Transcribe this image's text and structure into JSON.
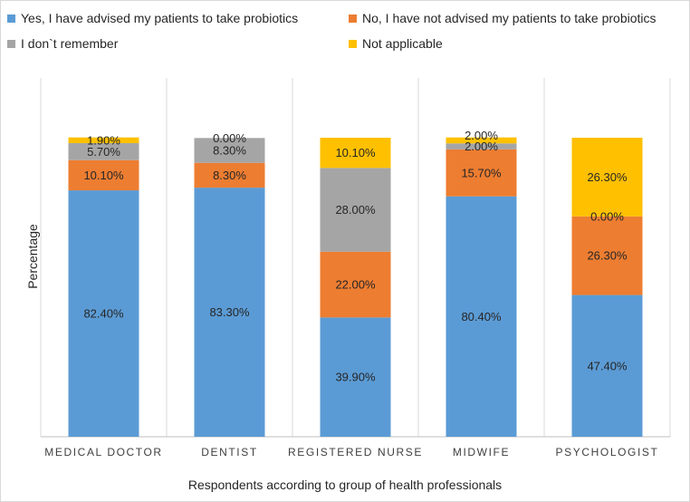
{
  "chart_data": {
    "type": "stacked-bar",
    "title": "",
    "xlabel": "Respondents according to group of health professionals",
    "ylabel": "Percentage",
    "ylim": [
      0,
      100
    ],
    "grid": false,
    "legend_position": "top",
    "categories": [
      "MEDICAL DOCTOR",
      "DENTIST",
      "REGISTERED NURSE",
      "MIDWIFE",
      "PSYCHOLOGIST"
    ],
    "series": [
      {
        "name": "Yes, I have advised my patients to take probiotics",
        "color": "#5b9bd5",
        "values": [
          82.4,
          83.3,
          39.9,
          80.4,
          47.4
        ],
        "labels": [
          "82.40%",
          "83.30%",
          "39.90%",
          "80.40%",
          "47.40%"
        ]
      },
      {
        "name": "No, I have not advised my patients to take probiotics",
        "color": "#ed7d31",
        "values": [
          10.1,
          8.3,
          22.0,
          15.7,
          26.3
        ],
        "labels": [
          "10.10%",
          "8.30%",
          "22.00%",
          "15.70%",
          "26.30%"
        ]
      },
      {
        "name": "I don`t remember",
        "color": "#a5a5a5",
        "values": [
          5.7,
          8.3,
          28.0,
          2.0,
          0.0
        ],
        "labels": [
          "5.70%",
          "8.30%",
          "28.00%",
          "2.00%",
          "0.00%"
        ]
      },
      {
        "name": "Not applicable",
        "color": "#ffc000",
        "values": [
          1.9,
          0.0,
          10.1,
          2.0,
          26.3
        ],
        "labels": [
          "1.90%",
          "0.00%",
          "10.10%",
          "2.00%",
          "26.30%"
        ]
      }
    ]
  }
}
